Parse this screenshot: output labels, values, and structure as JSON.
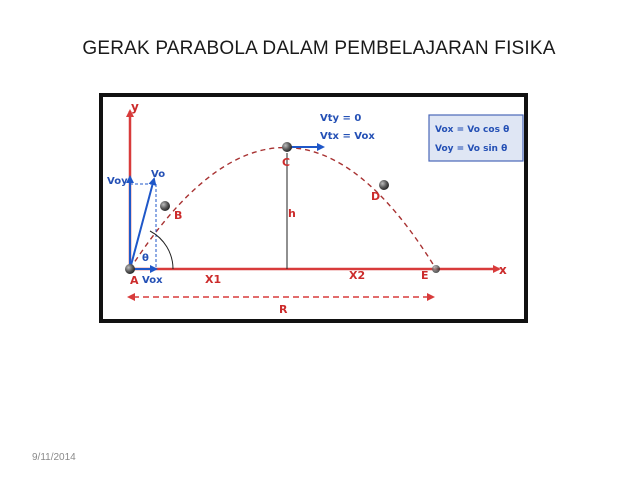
{
  "slide": {
    "title": "GERAK PARABOLA DALAM  PEMBELAJARAN FISIKA",
    "date": "9/11/2014"
  },
  "diagram": {
    "axis_x_label": "x",
    "axis_y_label": "y",
    "points": {
      "A": "A",
      "B": "B",
      "C": "C",
      "D": "D",
      "E": "E"
    },
    "vectors": {
      "vo": "Vo",
      "vox": "Vox",
      "voy": "Voy"
    },
    "angle_label": "θ",
    "height_label": "h",
    "segments": {
      "x1": "X1",
      "x2": "X2",
      "range": "R"
    },
    "top_labels": {
      "vty": "Vty = 0",
      "vtx": "Vtx = Vox"
    },
    "formula_box": {
      "line1": "Vox = Vo cos θ",
      "line2": "Voy = Vo sin θ"
    },
    "colors": {
      "axis_red": "#d83b3b",
      "vector_blue": "#1f57c8",
      "label_red": "#cc2b2b",
      "label_blue": "#2450b5",
      "trajectory": "#a83232",
      "formula_bg": "#dfe6f4",
      "formula_border": "#4a68b8"
    }
  }
}
